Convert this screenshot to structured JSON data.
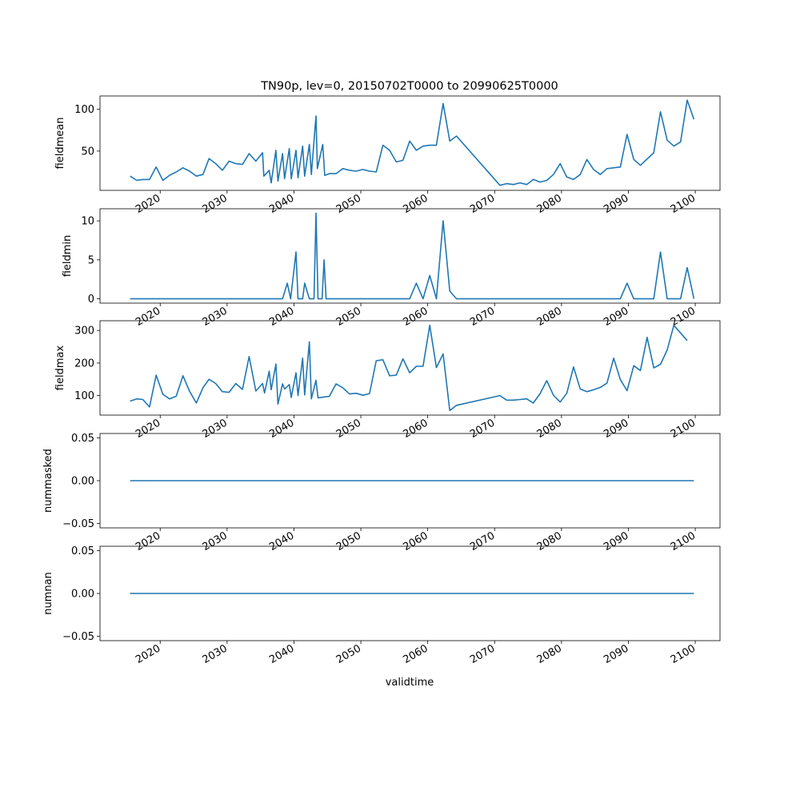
{
  "chart_data": {
    "title": "TN90p, lev=0, 20150702T0000 to 20990625T0000",
    "xlabel": "validtime",
    "x_tick_labels": [
      "2020",
      "2030",
      "2040",
      "2050",
      "2060",
      "2070",
      "2080",
      "2090",
      "2100"
    ],
    "x_tick_values": [
      2020,
      2030,
      2040,
      2050,
      2060,
      2070,
      2080,
      2090,
      2100
    ],
    "xlim": [
      2011.0,
      2103.7
    ],
    "line_color": "#1f77b4",
    "x": [
      2015.5,
      2016.5,
      2017.4,
      2018.4,
      2019.4,
      2020.4,
      2021.4,
      2022.4,
      2023.4,
      2024.4,
      2025.4,
      2026.4,
      2027.3,
      2028.3,
      2029.3,
      2030.3,
      2031.3,
      2032.3,
      2033.3,
      2034.3,
      2035.3,
      2036.3,
      2037.3,
      2038.3,
      2039.3,
      2040.3,
      2041.3,
      2042.3,
      2043.3,
      2044.3,
      2045.3,
      2046.3,
      2047.3,
      2048.3,
      2049.3,
      2050.3,
      2051.3,
      2052.3,
      2053.3,
      2054.3,
      2055.3,
      2056.3,
      2057.3,
      2058.3,
      2059.3,
      2060.3,
      2061.3,
      2062.3,
      2063.3,
      2064.3,
      2070.8,
      2071.8,
      2072.8,
      2073.8,
      2074.8,
      2075.8,
      2076.8,
      2077.8,
      2078.8,
      2079.8,
      2080.8,
      2081.8,
      2082.8,
      2083.8,
      2084.8,
      2085.8,
      2086.8,
      2087.8,
      2088.8,
      2089.8,
      2090.8,
      2091.8,
      2093.8,
      2094.8,
      2095.8,
      2096.8,
      2097.8,
      2098.8,
      2099.8
    ],
    "panels": [
      {
        "ylabel": "fieldmean",
        "ylim": [
          3,
          116
        ],
        "y_ticks": [
          50,
          100
        ],
        "y_tick_labels": [
          "50",
          "100"
        ],
        "values": [
          20,
          15,
          16,
          16,
          31,
          15,
          21,
          25,
          30,
          26,
          20,
          22,
          41,
          35,
          27,
          38,
          35,
          34,
          47,
          38,
          48,
          20,
          27,
          12,
          51,
          14,
          47,
          17,
          53,
          17,
          51,
          18,
          56,
          20,
          58,
          22,
          92,
          29,
          58,
          21,
          23,
          23,
          29,
          27,
          26,
          28,
          26,
          25,
          57,
          51,
          37,
          39,
          62,
          51,
          56,
          57,
          57,
          107,
          62,
          68,
          9,
          11,
          10,
          12,
          10,
          16,
          13,
          15,
          22,
          35,
          19,
          16,
          22,
          40,
          28,
          22,
          29,
          30,
          31,
          70,
          40,
          33,
          48,
          97,
          63,
          56,
          61,
          111,
          88
        ],
        "x_override": [
          2015.5,
          2016.5,
          2017.4,
          2018.4,
          2019.4,
          2020.4,
          2021.4,
          2022.4,
          2023.4,
          2024.4,
          2025.4,
          2026.4,
          2027.3,
          2028.3,
          2029.3,
          2030.3,
          2031.3,
          2032.3,
          2033.3,
          2034.3,
          2035.3,
          2035.5,
          2036.3,
          2036.6,
          2037.3,
          2037.6,
          2038.3,
          2038.6,
          2039.3,
          2039.6,
          2040.3,
          2040.6,
          2041.3,
          2041.6,
          2042.3,
          2042.6,
          2043.3,
          2043.5,
          2044.3,
          2044.6,
          2045.3,
          2046.3,
          2047.3,
          2048.3,
          2049.3,
          2050.3,
          2051.3,
          2052.3,
          2053.3,
          2054.3,
          2055.3,
          2056.3,
          2057.3,
          2058.3,
          2059.3,
          2060.3,
          2061.3,
          2062.3,
          2063.3,
          2064.3,
          2070.8,
          2071.8,
          2072.8,
          2073.8,
          2074.8,
          2075.8,
          2076.8,
          2077.8,
          2078.8,
          2079.8,
          2080.8,
          2081.8,
          2082.8,
          2083.8,
          2084.8,
          2085.8,
          2086.8,
          2087.8,
          2088.8,
          2089.8,
          2090.8,
          2091.8,
          2093.8,
          2094.8,
          2095.8,
          2096.8,
          2097.8,
          2098.8,
          2099.8
        ]
      },
      {
        "ylabel": "fieldmin",
        "ylim": [
          -0.55,
          11.55
        ],
        "y_ticks": [
          0,
          5,
          10
        ],
        "y_tick_labels": [
          "0",
          "5",
          "10"
        ],
        "values": [
          0,
          0,
          0,
          0,
          0,
          0,
          0,
          0,
          0,
          0,
          0,
          0,
          0,
          0,
          0,
          0,
          0,
          0,
          0,
          0,
          0,
          0,
          0,
          0,
          0,
          0,
          0,
          2,
          0,
          6,
          0,
          0,
          2,
          0,
          0,
          0,
          11,
          0,
          0,
          5,
          0,
          0,
          0,
          0,
          0,
          0,
          0,
          0,
          0,
          0,
          0,
          0,
          0,
          2,
          0,
          3,
          0,
          10,
          1,
          0,
          0,
          0,
          0,
          0,
          0,
          0,
          0,
          0,
          0,
          0,
          0,
          0,
          0,
          0,
          0,
          0,
          0,
          0,
          0,
          2,
          0,
          0,
          0,
          6,
          0,
          0,
          0,
          4,
          0
        ],
        "x_override": [
          2015.5,
          2016.5,
          2017.4,
          2018.4,
          2019.4,
          2020.4,
          2021.4,
          2022.4,
          2023.4,
          2024.4,
          2025.4,
          2026.4,
          2027.3,
          2028.3,
          2029.3,
          2030.3,
          2031.3,
          2032.3,
          2033.3,
          2034.3,
          2035.3,
          2035.5,
          2036.3,
          2036.6,
          2037.3,
          2037.6,
          2038.3,
          2039.0,
          2039.5,
          2040.3,
          2040.6,
          2041.3,
          2041.6,
          2042.3,
          2042.6,
          2043.0,
          2043.3,
          2043.6,
          2044.2,
          2044.5,
          2044.8,
          2046.3,
          2047.3,
          2048.3,
          2049.3,
          2050.3,
          2051.3,
          2052.3,
          2053.3,
          2054.3,
          2055.3,
          2056.3,
          2057.3,
          2058.3,
          2059.3,
          2060.3,
          2061.3,
          2062.3,
          2063.3,
          2064.3,
          2070.8,
          2071.8,
          2072.8,
          2073.8,
          2074.8,
          2075.8,
          2076.8,
          2077.8,
          2078.8,
          2079.8,
          2080.8,
          2081.8,
          2082.8,
          2083.8,
          2084.8,
          2085.8,
          2086.8,
          2087.8,
          2088.8,
          2089.8,
          2090.8,
          2091.8,
          2093.8,
          2094.8,
          2095.8,
          2096.8,
          2097.8,
          2098.8,
          2099.8
        ]
      },
      {
        "ylabel": "fieldmax",
        "ylim": [
          40,
          330
        ],
        "y_ticks": [
          100,
          200,
          300
        ],
        "y_tick_labels": [
          "100",
          "200",
          "300"
        ],
        "values": [
          83,
          90,
          88,
          65,
          163,
          104,
          90,
          98,
          161,
          113,
          77,
          124,
          150,
          137,
          112,
          110,
          137,
          119,
          220,
          114,
          137,
          108,
          175,
          118,
          197,
          74,
          136,
          120,
          134,
          94,
          170,
          100,
          215,
          102,
          265,
          90,
          147,
          93,
          98,
          136,
          124,
          105,
          107,
          101,
          106,
          207,
          210,
          161,
          163,
          213,
          170,
          190,
          190,
          316,
          186,
          228,
          54,
          70,
          100,
          86,
          86,
          88,
          90,
          77,
          106,
          146,
          101,
          80,
          107,
          188,
          120,
          112,
          118,
          125,
          138,
          215,
          149,
          115,
          192,
          177,
          279,
          185,
          196,
          240,
          316,
          269
        ],
        "x_override": [
          2015.5,
          2016.5,
          2017.4,
          2018.4,
          2019.4,
          2020.4,
          2021.4,
          2022.4,
          2023.4,
          2024.4,
          2025.4,
          2026.4,
          2027.3,
          2028.3,
          2029.3,
          2030.3,
          2031.3,
          2032.3,
          2033.3,
          2034.3,
          2035.3,
          2035.6,
          2036.3,
          2036.6,
          2037.3,
          2037.6,
          2038.3,
          2038.6,
          2039.3,
          2039.6,
          2040.3,
          2040.6,
          2041.3,
          2041.6,
          2042.3,
          2042.6,
          2043.3,
          2043.6,
          2045.3,
          2046.3,
          2047.3,
          2048.3,
          2049.3,
          2050.3,
          2051.3,
          2052.3,
          2053.3,
          2054.3,
          2055.3,
          2056.3,
          2057.3,
          2058.3,
          2059.3,
          2060.3,
          2061.3,
          2062.3,
          2063.3,
          2064.3,
          2070.8,
          2071.8,
          2072.8,
          2073.8,
          2074.8,
          2075.8,
          2076.8,
          2077.8,
          2078.8,
          2079.8,
          2080.8,
          2081.8,
          2082.8,
          2083.8,
          2084.8,
          2085.8,
          2086.8,
          2087.8,
          2088.8,
          2089.8,
          2090.8,
          2091.8,
          2092.8,
          2093.8,
          2094.8,
          2095.8,
          2096.8,
          2098.8
        ]
      },
      {
        "ylabel": "nummasked",
        "ylim": [
          -0.055,
          0.055
        ],
        "y_ticks": [
          -0.05,
          0.0,
          0.05
        ],
        "y_tick_labels": [
          "−0.05",
          "0.00",
          "0.05"
        ],
        "values": [
          0,
          0
        ],
        "x_override": [
          2015.5,
          2099.8
        ]
      },
      {
        "ylabel": "numnan",
        "ylim": [
          -0.055,
          0.055
        ],
        "y_ticks": [
          -0.05,
          0.0,
          0.05
        ],
        "y_tick_labels": [
          "−0.05",
          "0.00",
          "0.05"
        ],
        "values": [
          0,
          0
        ],
        "x_override": [
          2015.5,
          2099.8
        ]
      }
    ]
  }
}
